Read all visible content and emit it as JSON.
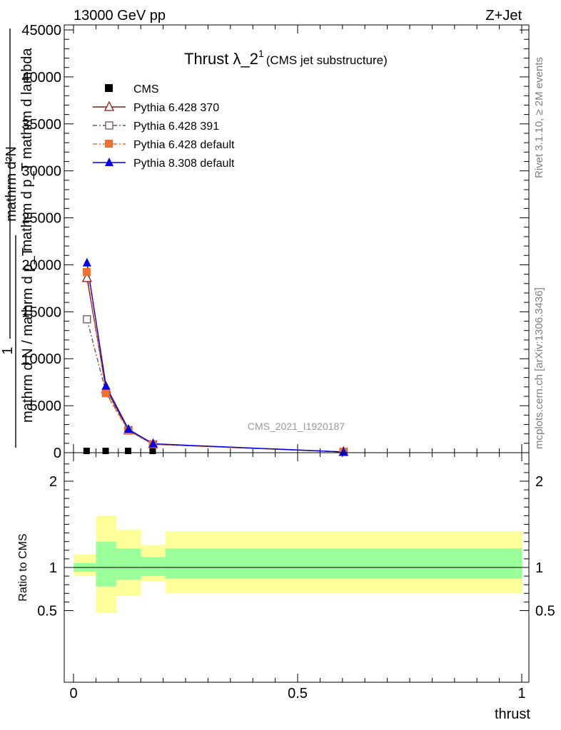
{
  "header": {
    "energy_label": "13000 GeV pp",
    "process_label": "Z+Jet"
  },
  "side_labels": {
    "rivet": "Rivet 3.1.10, ≥ 2M events",
    "mcplots": "mcplots.cern.ch [arXiv:1306.3436]"
  },
  "chart_data": [
    {
      "type": "line",
      "title": "Thrust λ_2^1 (CMS jet substructure)",
      "title_main": "Thrust λ_2",
      "title_sup": "1",
      "title_paren": "(CMS jet substructure)",
      "watermark": "CMS_2021_I1920187",
      "ylabel_top": "mathrm d²N",
      "ylabel_mid": "mathrm d p_T mathrm d lambda",
      "ylabel_one": "1",
      "ylabel_bottom": "mathrm d N / mathrm d p_T",
      "xlim": [
        0,
        1
      ],
      "ylim": [
        0,
        45000
      ],
      "yticks": [
        0,
        5000,
        10000,
        15000,
        20000,
        25000,
        30000,
        35000,
        40000,
        45000
      ],
      "ytick_labels": [
        "0",
        "5000",
        "10000",
        "15000",
        "20000",
        "25000",
        "30000",
        "35000",
        "40000",
        "45000"
      ],
      "legend_position": "top-left",
      "series": [
        {
          "name": "CMS",
          "color": "#000000",
          "marker": "square-filled",
          "line": "none",
          "x": [
            0.03,
            0.0725,
            0.1225,
            0.1775,
            0.6025
          ],
          "y": [
            0,
            0,
            0,
            0,
            0
          ]
        },
        {
          "name": "Pythia 6.428 370",
          "color": "#8b1a1a",
          "marker": "triangle-open",
          "line": "solid",
          "x": [
            0.03,
            0.0725,
            0.1225,
            0.1775,
            0.6025
          ],
          "y": [
            18600,
            6800,
            2400,
            900,
            80
          ]
        },
        {
          "name": "Pythia 6.428 391",
          "color": "#6e4f5f",
          "marker": "square-open",
          "line": "dashdot",
          "x": [
            0.03,
            0.0725,
            0.1225,
            0.1775,
            0.6025
          ],
          "y": [
            14200,
            6400,
            2400,
            900,
            80
          ]
        },
        {
          "name": "Pythia 6.428 default",
          "color": "#f07030",
          "marker": "square-filled",
          "line": "dashdot",
          "x": [
            0.03,
            0.0725,
            0.1225,
            0.1775,
            0.6025
          ],
          "y": [
            19200,
            6300,
            2300,
            880,
            80
          ]
        },
        {
          "name": "Pythia 8.308 default",
          "color": "#0000ee",
          "marker": "triangle-filled",
          "line": "solid",
          "x": [
            0.03,
            0.0725,
            0.1225,
            0.1775,
            0.6025
          ],
          "y": [
            20200,
            7100,
            2500,
            950,
            80
          ]
        }
      ]
    },
    {
      "type": "area",
      "ylabel": "Ratio to CMS",
      "xlabel": "thrust",
      "xlim": [
        0,
        1
      ],
      "ylim": [
        0.35,
        2.3
      ],
      "xticks": [
        0,
        0.5,
        1
      ],
      "xtick_labels": [
        "0",
        "0.5",
        "1"
      ],
      "yticks": [
        0.5,
        1,
        2
      ],
      "ytick_labels": [
        "0.5",
        "1",
        "2"
      ],
      "reference_line": 1,
      "bins": [
        {
          "x0": 0.0,
          "x1": 0.05,
          "stat": [
            0.95,
            1.05
          ],
          "total": [
            0.9,
            1.15
          ]
        },
        {
          "x0": 0.05,
          "x1": 0.095,
          "stat": [
            0.78,
            1.3
          ],
          "total": [
            0.47,
            1.6
          ]
        },
        {
          "x0": 0.095,
          "x1": 0.15,
          "stat": [
            0.86,
            1.22
          ],
          "total": [
            0.67,
            1.44
          ]
        },
        {
          "x0": 0.15,
          "x1": 0.205,
          "stat": [
            0.9,
            1.12
          ],
          "total": [
            0.84,
            1.26
          ]
        },
        {
          "x0": 0.205,
          "x1": 1.0,
          "stat": [
            0.87,
            1.22
          ],
          "total": [
            0.7,
            1.42
          ]
        }
      ],
      "band_colors": {
        "stat": "#99ff99",
        "total": "#ffff99"
      }
    }
  ]
}
